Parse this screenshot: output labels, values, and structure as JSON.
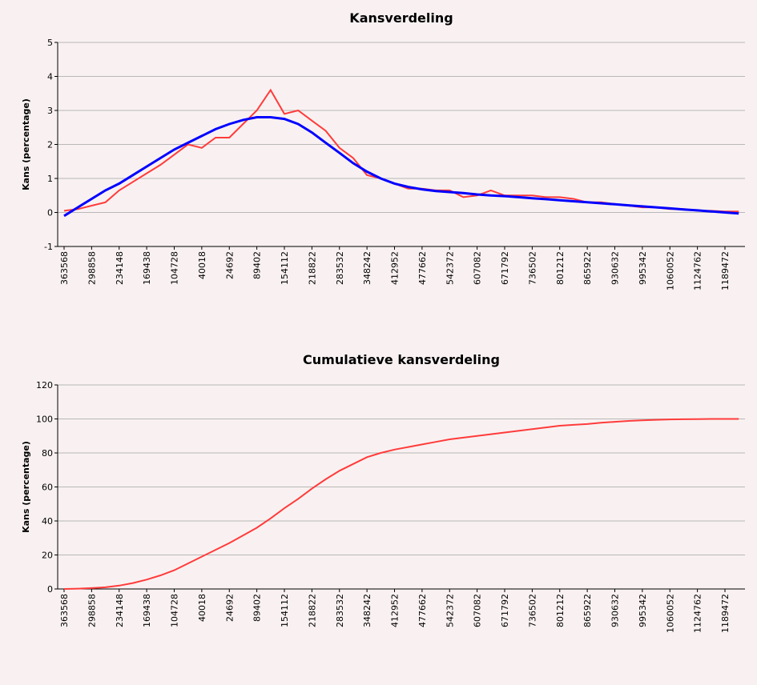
{
  "chart_data": [
    {
      "type": "line",
      "title": "Kansverdeling",
      "y_label": "Kans (percentage)",
      "categories": [
        "363568",
        null,
        "298858",
        null,
        "234148",
        null,
        "169438",
        null,
        "104728",
        null,
        "40018",
        null,
        "24692",
        null,
        "89402",
        null,
        "154112",
        null,
        "218822",
        null,
        "283532",
        null,
        "348242",
        null,
        "412952",
        null,
        "477662",
        null,
        "542372",
        null,
        "607082",
        null,
        "671792",
        null,
        "736502",
        null,
        "801212",
        null,
        "865922",
        null,
        "930632",
        null,
        "995342",
        null,
        "1060052",
        null,
        "1124762",
        null,
        "1189472",
        null
      ],
      "series": [
        {
          "color": "#ff3b3b",
          "values": [
            0.05,
            0.1,
            0.2,
            0.3,
            0.65,
            0.9,
            1.15,
            1.4,
            1.7,
            2.0,
            1.9,
            2.2,
            2.2,
            2.6,
            3.0,
            3.6,
            2.9,
            3.0,
            2.7,
            2.4,
            1.9,
            1.6,
            1.1,
            1.0,
            0.85,
            0.7,
            0.7,
            0.65,
            0.65,
            0.45,
            0.5,
            0.65,
            0.5,
            0.5,
            0.5,
            0.45,
            0.45,
            0.4,
            0.3,
            0.3,
            0.25,
            0.2,
            0.15,
            0.15,
            0.1,
            0.1,
            0.05,
            0.05,
            0.03,
            0.03
          ]
        },
        {
          "color": "#0000ff",
          "values": [
            -0.1,
            0.15,
            0.4,
            0.65,
            0.85,
            1.1,
            1.35,
            1.6,
            1.85,
            2.05,
            2.25,
            2.45,
            2.6,
            2.72,
            2.8,
            2.8,
            2.75,
            2.6,
            2.35,
            2.05,
            1.75,
            1.45,
            1.2,
            1.0,
            0.85,
            0.75,
            0.68,
            0.63,
            0.6,
            0.57,
            0.53,
            0.5,
            0.48,
            0.45,
            0.42,
            0.39,
            0.36,
            0.33,
            0.3,
            0.27,
            0.24,
            0.21,
            0.18,
            0.15,
            0.12,
            0.09,
            0.06,
            0.03,
            0.0,
            -0.03
          ]
        }
      ],
      "ylim": [
        -1,
        5
      ],
      "yticks": [
        -1,
        0,
        1,
        2,
        3,
        4,
        5
      ],
      "grid": true
    },
    {
      "type": "line",
      "title": "Cumulatieve kansverdeling",
      "y_label": "Kans (percentage)",
      "categories": [
        "363568",
        null,
        "298858",
        null,
        "234148",
        null,
        "169438",
        null,
        "104728",
        null,
        "40018",
        null,
        "24692",
        null,
        "89402",
        null,
        "154112",
        null,
        "218822",
        null,
        "283532",
        null,
        "348242",
        null,
        "412952",
        null,
        "477662",
        null,
        "542372",
        null,
        "607082",
        null,
        "671792",
        null,
        "736502",
        null,
        "801212",
        null,
        "865922",
        null,
        "930632",
        null,
        "995342",
        null,
        "1060052",
        null,
        "1124762",
        null,
        "1189472",
        null
      ],
      "series": [
        {
          "color": "#ff3b3b",
          "values": [
            0,
            0.2,
            0.5,
            1,
            2,
            3.5,
            5.5,
            8,
            11,
            15,
            19,
            23,
            27,
            31.5,
            36,
            41.5,
            47.5,
            53,
            59,
            64.5,
            69.5,
            73.5,
            77.5,
            80,
            82,
            83.5,
            85,
            86.5,
            88,
            89,
            90,
            91,
            92,
            93,
            94,
            95,
            96,
            96.5,
            97,
            97.8,
            98.3,
            98.8,
            99.2,
            99.5,
            99.7,
            99.8,
            99.9,
            100,
            100,
            100
          ]
        }
      ],
      "ylim": [
        0,
        120
      ],
      "yticks": [
        0,
        20,
        40,
        60,
        80,
        100,
        120
      ],
      "grid": true
    }
  ]
}
